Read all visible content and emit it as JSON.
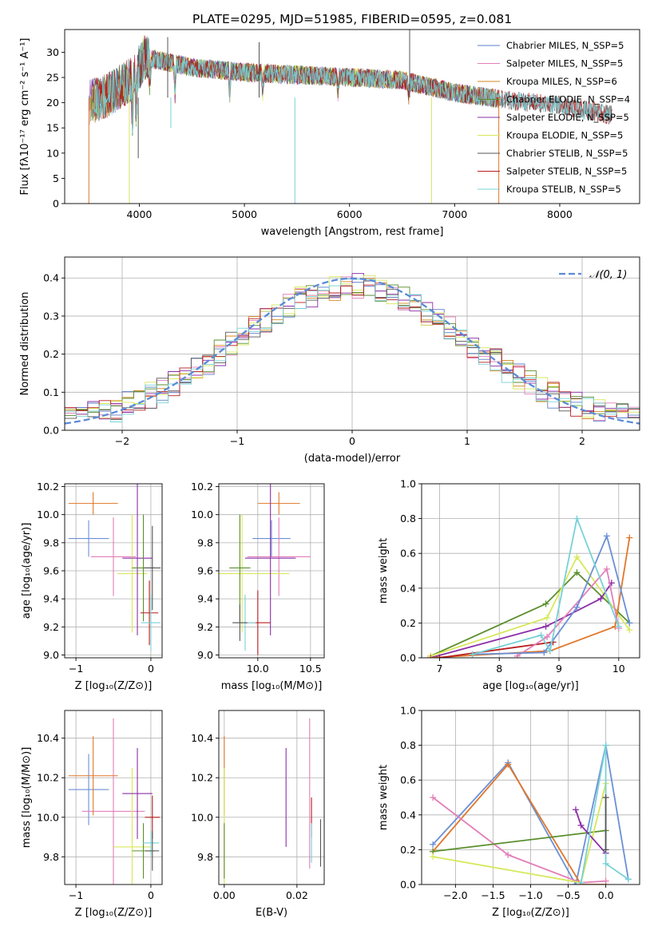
{
  "chart_data": [
    {
      "id": "spectrum",
      "type": "line",
      "title": "PLATE=0295, MJD=51985, FIBERID=0595, z=0.081",
      "xlabel": "wavelength [Angstrom, rest frame]",
      "ylabel": "Flux [fλ10⁻¹⁷ erg cm⁻² s⁻¹ A⁻¹]",
      "xlim": [
        3290,
        8760
      ],
      "ylim": [
        0,
        34.5
      ],
      "xticks": [
        4000,
        5000,
        6000,
        7000,
        8000
      ],
      "yticks": [
        0,
        5,
        10,
        15,
        20,
        25,
        30
      ],
      "grid": false,
      "legend_position": "top-right",
      "legend": [
        {
          "label": "Chabrier MILES, N_SSP=5",
          "color": "#5b7ec9"
        },
        {
          "label": "Salpeter MILES, N_SSP=5",
          "color": "#e27fb9"
        },
        {
          "label": "Kroupa MILES, N_SSP=6",
          "color": "#d4861c"
        },
        {
          "label": "Chabrier ELODIE, N_SSP=4",
          "color": "#5a8f2d"
        },
        {
          "label": "Salpeter ELODIE, N_SSP=5",
          "color": "#8b2fa8"
        },
        {
          "label": "Kroupa ELODIE, N_SSP=5",
          "color": "#d6e85a"
        },
        {
          "label": "Chabrier STELIB, N_SSP=5",
          "color": "#555555"
        },
        {
          "label": "Salpeter STELIB, N_SSP=5",
          "color": "#b81e1e"
        },
        {
          "label": "Kroupa STELIB, N_SSP=5",
          "color": "#79d1d6"
        }
      ],
      "continuum": {
        "x": [
          3520,
          3700,
          3950,
          4050,
          4500,
          5000,
          5500,
          6000,
          6500,
          7000,
          7500,
          8000,
          8500
        ],
        "y": [
          20,
          21.5,
          25,
          29,
          27,
          26,
          25.5,
          25,
          24.5,
          22,
          20.5,
          19.5,
          17.5
        ]
      }
    },
    {
      "id": "residuals",
      "type": "histogram",
      "xlabel": "(data-model)/error",
      "ylabel": "Normed distribution",
      "xlim": [
        -2.5,
        2.5
      ],
      "ylim": [
        0,
        0.455
      ],
      "xticks": [
        -2,
        -1,
        0,
        1,
        2
      ],
      "yticks": [
        0.0,
        0.1,
        0.2,
        0.3,
        0.4
      ],
      "grid": true,
      "legend_position": "top-right",
      "legend": [
        {
          "label": "𝒩(0, 1)",
          "color": "#5b8bd8",
          "style": "dashed"
        }
      ],
      "bin_width": 0.1
    },
    {
      "id": "age-vs-Z",
      "type": "errorbar",
      "xlabel": "Z [log₁₀(Z/Z⊙)]",
      "ylabel": "age  [log₁₀(age/yr)]",
      "xlim": [
        -1.15,
        0.15
      ],
      "ylim": [
        8.98,
        10.22
      ],
      "xticks": [
        -1,
        0
      ],
      "yticks": [
        9.0,
        9.2,
        9.4,
        9.6,
        9.8,
        10.0,
        10.2
      ],
      "grid": true,
      "points": [
        {
          "x": -0.83,
          "y": 9.83,
          "xerr": 0.27,
          "yerr": 0.13,
          "color": "#6b8fd6"
        },
        {
          "x": -0.5,
          "y": 9.7,
          "xerr": 0.3,
          "yerr": 0.28,
          "color": "#e27fb9"
        },
        {
          "x": -0.77,
          "y": 10.08,
          "xerr": 0.33,
          "yerr": 0.08,
          "color": "#e0772a"
        },
        {
          "x": -0.25,
          "y": 9.58,
          "xerr": 0.2,
          "yerr": 0.42,
          "color": "#d6e85a"
        },
        {
          "x": -0.18,
          "y": 9.69,
          "xerr": 0.2,
          "yerr": 0.55,
          "color": "#8b2fa8"
        },
        {
          "x": -0.1,
          "y": 9.62,
          "xerr": 0.15,
          "yerr": 0.38,
          "color": "#5a8f2d"
        },
        {
          "x": -0.02,
          "y": 9.3,
          "xerr": 0.12,
          "yerr": 0.23,
          "color": "#b81e1e"
        },
        {
          "x": 0.0,
          "y": 9.23,
          "xerr": 0.13,
          "yerr": 0.2,
          "color": "#79d1d6"
        },
        {
          "x": 0.02,
          "y": 9.62,
          "xerr": 0.11,
          "yerr": 0.3,
          "color": "#555555"
        }
      ]
    },
    {
      "id": "age-vs-mass",
      "type": "errorbar",
      "xlabel": "mass [log₁₀(M/M⊙)]",
      "ylabel": "",
      "xlim": [
        9.63,
        10.63
      ],
      "ylim": [
        8.98,
        10.22
      ],
      "xticks": [
        10.0,
        10.5
      ],
      "yticks": [
        9.0,
        9.2,
        9.4,
        9.6,
        9.8,
        10.0,
        10.2
      ],
      "grid": true,
      "points": [
        {
          "x": 10.13,
          "y": 9.83,
          "xerr": 0.18,
          "yerr": 0.13,
          "color": "#6b8fd6"
        },
        {
          "x": 10.2,
          "y": 9.7,
          "xerr": 0.3,
          "yerr": 0.28,
          "color": "#e27fb9"
        },
        {
          "x": 10.2,
          "y": 10.08,
          "xerr": 0.2,
          "yerr": 0.08,
          "color": "#e0772a"
        },
        {
          "x": 9.85,
          "y": 9.58,
          "xerr": 0.45,
          "yerr": 0.42,
          "color": "#d6e85a"
        },
        {
          "x": 10.12,
          "y": 9.69,
          "xerr": 0.24,
          "yerr": 0.55,
          "color": "#8b2fa8"
        },
        {
          "x": 9.83,
          "y": 9.62,
          "xerr": 0.1,
          "yerr": 0.38,
          "color": "#5a8f2d"
        },
        {
          "x": 10.0,
          "y": 9.23,
          "xerr": 0.12,
          "yerr": 0.23,
          "color": "#b81e1e"
        },
        {
          "x": 9.88,
          "y": 9.23,
          "xerr": 0.1,
          "yerr": 0.2,
          "color": "#79d1d6"
        },
        {
          "x": 9.83,
          "y": 9.23,
          "xerr": 0.07,
          "yerr": 0.13,
          "color": "#555555"
        }
      ]
    },
    {
      "id": "massweight-vs-age",
      "type": "line",
      "xlabel": "age  [log₁₀(age/yr)]",
      "ylabel": "mass weight",
      "xlim": [
        6.7,
        10.35
      ],
      "ylim": [
        0,
        1.0
      ],
      "xticks": [
        7,
        8,
        9,
        10
      ],
      "yticks": [
        0.0,
        0.2,
        0.4,
        0.6,
        0.8,
        1.0
      ],
      "grid": true,
      "series": [
        {
          "color": "#5a8f2d",
          "x": [
            6.85,
            8.78,
            9.3,
            10.18
          ],
          "y": [
            0.01,
            0.31,
            0.49,
            0.2
          ]
        },
        {
          "color": "#d6e85a",
          "x": [
            6.85,
            8.8,
            9.3,
            10.18
          ],
          "y": [
            0.01,
            0.23,
            0.58,
            0.16
          ]
        },
        {
          "color": "#8b2fa8",
          "x": [
            6.85,
            8.78,
            9.7,
            9.88
          ],
          "y": [
            0.0,
            0.18,
            0.34,
            0.43
          ]
        },
        {
          "color": "#e0772a",
          "x": [
            6.85,
            8.85,
            9.94,
            10.18
          ],
          "y": [
            0.0,
            0.04,
            0.18,
            0.69
          ]
        },
        {
          "color": "#b81e1e",
          "x": [
            7.0,
            8.9
          ],
          "y": [
            0.0,
            0.09
          ]
        },
        {
          "color": "#e27fb9",
          "x": [
            8.3,
            8.8,
            9.8,
            10.0
          ],
          "y": [
            0.01,
            0.12,
            0.51,
            0.17
          ]
        },
        {
          "color": "#6b8fd6",
          "x": [
            7.55,
            8.75,
            9.3,
            9.8,
            10.18
          ],
          "y": [
            0.02,
            0.03,
            0.29,
            0.7,
            0.2
          ]
        },
        {
          "color": "#79d1d6",
          "x": [
            7.55,
            8.7,
            8.85,
            9.3,
            10.0
          ],
          "y": [
            0.02,
            0.13,
            0.04,
            0.8,
            0.18
          ]
        }
      ]
    },
    {
      "id": "mass-vs-Z",
      "type": "errorbar",
      "xlabel": "Z [log₁₀(Z/Z⊙)]",
      "ylabel": "mass [log₁₀(M/M⊙)]",
      "xlim": [
        -1.15,
        0.15
      ],
      "ylim": [
        9.66,
        10.54
      ],
      "xticks": [
        -1,
        0
      ],
      "yticks": [
        9.8,
        10.0,
        10.2,
        10.4
      ],
      "grid": true,
      "points": [
        {
          "x": -0.83,
          "y": 10.14,
          "xerr": 0.27,
          "yerr": 0.18,
          "color": "#6b8fd6"
        },
        {
          "x": -0.5,
          "y": 10.03,
          "xerr": 0.42,
          "yerr": 0.47,
          "color": "#e27fb9"
        },
        {
          "x": -0.77,
          "y": 10.21,
          "xerr": 0.33,
          "yerr": 0.2,
          "color": "#e0772a"
        },
        {
          "x": -0.25,
          "y": 9.85,
          "xerr": 0.25,
          "yerr": 0.4,
          "color": "#d6e85a"
        },
        {
          "x": -0.18,
          "y": 10.12,
          "xerr": 0.2,
          "yerr": 0.23,
          "color": "#8b2fa8"
        },
        {
          "x": -0.1,
          "y": 9.83,
          "xerr": 0.15,
          "yerr": 0.14,
          "color": "#5a8f2d"
        },
        {
          "x": 0.02,
          "y": 10.0,
          "xerr": 0.1,
          "yerr": 0.11,
          "color": "#b81e1e"
        },
        {
          "x": 0.0,
          "y": 9.87,
          "xerr": 0.11,
          "yerr": 0.06,
          "color": "#79d1d6"
        },
        {
          "x": 0.02,
          "y": 9.83,
          "xerr": 0.09,
          "yerr": 0.1,
          "color": "#555555"
        }
      ]
    },
    {
      "id": "mass-vs-EBV",
      "type": "errorbar",
      "xlabel": "E(B-V)",
      "ylabel": "",
      "xlim": [
        -0.0015,
        0.0275
      ],
      "ylim": [
        9.66,
        10.54
      ],
      "xticks": [
        0.0,
        0.02
      ],
      "yticks": [
        9.8,
        10.0,
        10.2,
        10.4
      ],
      "grid": true,
      "points": [
        {
          "x": 0.0,
          "y": 10.21,
          "xerr": 0,
          "yerr": 0.2,
          "color": "#e0772a"
        },
        {
          "x": 0.0,
          "y": 9.85,
          "xerr": 0,
          "yerr": 0.4,
          "color": "#d6e85a"
        },
        {
          "x": 0.0,
          "y": 9.83,
          "xerr": 0,
          "yerr": 0.14,
          "color": "#5a8f2d"
        },
        {
          "x": 0.017,
          "y": 10.1,
          "xerr": 0,
          "yerr": 0.25,
          "color": "#8b2fa8"
        },
        {
          "x": 0.0235,
          "y": 10.12,
          "xerr": 0,
          "yerr": 0.38,
          "color": "#e27fb9"
        },
        {
          "x": 0.024,
          "y": 10.0,
          "xerr": 0,
          "yerr": 0.1,
          "color": "#b81e1e"
        },
        {
          "x": 0.024,
          "y": 9.87,
          "xerr": 0,
          "yerr": 0.1,
          "color": "#79d1d6"
        },
        {
          "x": 0.0265,
          "y": 9.87,
          "xerr": 0,
          "yerr": 0.12,
          "color": "#555555"
        }
      ]
    },
    {
      "id": "massweight-vs-Z",
      "type": "line",
      "xlabel": "Z [log₁₀(Z/Z⊙)]",
      "ylabel": "mass weight",
      "xlim": [
        -2.45,
        0.45
      ],
      "ylim": [
        0,
        1.0
      ],
      "xticks": [
        -2.0,
        -1.5,
        -1.0,
        -0.5,
        0.0
      ],
      "yticks": [
        0.0,
        0.2,
        0.4,
        0.6,
        0.8,
        1.0
      ],
      "grid": true,
      "series": [
        {
          "color": "#6b8fd6",
          "x": [
            -2.3,
            -1.3,
            -0.4,
            0.0,
            0.3
          ],
          "y": [
            0.23,
            0.7,
            0.0,
            0.8,
            0.03
          ]
        },
        {
          "color": "#e0772a",
          "x": [
            -2.3,
            -1.3,
            -0.33,
            0.0
          ],
          "y": [
            0.19,
            0.69,
            0.0,
            0.0
          ]
        },
        {
          "color": "#e27fb9",
          "x": [
            -2.3,
            -1.3,
            -0.33,
            0.0
          ],
          "y": [
            0.5,
            0.17,
            0.01,
            0.02
          ]
        },
        {
          "color": "#5a8f2d",
          "x": [
            -2.3,
            0.0
          ],
          "y": [
            0.19,
            0.31
          ]
        },
        {
          "color": "#d6e85a",
          "x": [
            -2.3,
            -0.33,
            0.0
          ],
          "y": [
            0.16,
            0.01,
            0.58
          ]
        },
        {
          "color": "#8b2fa8",
          "x": [
            -0.4,
            -0.33,
            0.0
          ],
          "y": [
            0.43,
            0.34,
            0.18
          ]
        },
        {
          "color": "#79d1d6",
          "x": [
            -0.33,
            0.0,
            0.0,
            0.3
          ],
          "y": [
            0.01,
            0.8,
            0.12,
            0.03
          ]
        },
        {
          "color": "#555555",
          "x": [
            0.0,
            0.0
          ],
          "y": [
            0.5,
            0.2
          ]
        }
      ]
    }
  ]
}
